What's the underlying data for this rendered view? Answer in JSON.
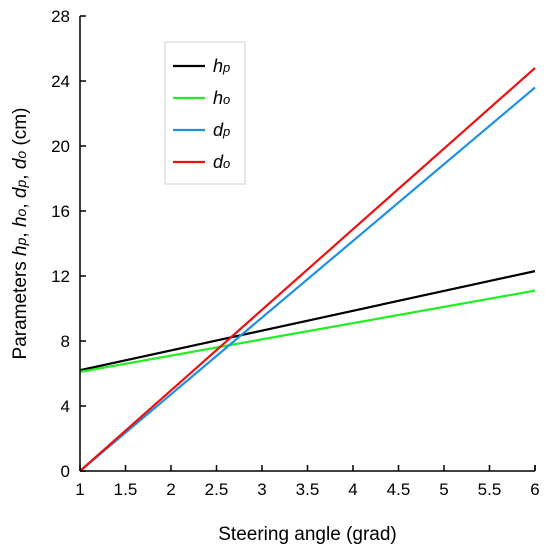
{
  "chart_data": {
    "type": "line",
    "title": "",
    "xlabel": "Steering angle (grad)",
    "ylabel_parts": [
      {
        "text": "Parameters ",
        "italic": false
      },
      {
        "text": "h",
        "italic": true
      },
      {
        "text": "p",
        "italic": true,
        "sub": true
      },
      {
        "text": ", ",
        "italic": false
      },
      {
        "text": "h",
        "italic": true
      },
      {
        "text": "o",
        "italic": true,
        "sub": true
      },
      {
        "text": ", ",
        "italic": false
      },
      {
        "text": "d",
        "italic": true
      },
      {
        "text": "p",
        "italic": true,
        "sub": true
      },
      {
        "text": ", ",
        "italic": false
      },
      {
        "text": "d",
        "italic": true
      },
      {
        "text": "o",
        "italic": true,
        "sub": true
      },
      {
        "text": " (cm)",
        "italic": false
      }
    ],
    "xlim": [
      1,
      6
    ],
    "ylim": [
      0,
      28
    ],
    "xticks": [
      1,
      1.5,
      2,
      2.5,
      3,
      3.5,
      4,
      4.5,
      5,
      5.5,
      6
    ],
    "xtick_labels": [
      "1",
      "1.5",
      "2",
      "2.5",
      "3",
      "3.5",
      "4",
      "4.5",
      "5",
      "5.5",
      "6"
    ],
    "yticks": [
      0,
      4,
      8,
      12,
      16,
      20,
      24,
      28
    ],
    "ytick_labels": [
      "0",
      "4",
      "8",
      "12",
      "16",
      "20",
      "24",
      "28"
    ],
    "grid": false,
    "legend_position": "top-left",
    "series": [
      {
        "key": "hp",
        "name": "h",
        "sub": "p",
        "color": "#000000",
        "x": [
          1,
          6
        ],
        "y": [
          6.2,
          12.3
        ]
      },
      {
        "key": "ho",
        "name": "h",
        "sub": "o",
        "color": "#22ee22",
        "x": [
          1,
          6
        ],
        "y": [
          6.1,
          11.1
        ]
      },
      {
        "key": "dp",
        "name": "d",
        "sub": "p",
        "color": "#1e90e6",
        "x": [
          1,
          6
        ],
        "y": [
          0,
          23.6
        ]
      },
      {
        "key": "do",
        "name": "d",
        "sub": "o",
        "color": "#ee1111",
        "x": [
          1,
          6
        ],
        "y": [
          0,
          24.8
        ]
      }
    ]
  }
}
